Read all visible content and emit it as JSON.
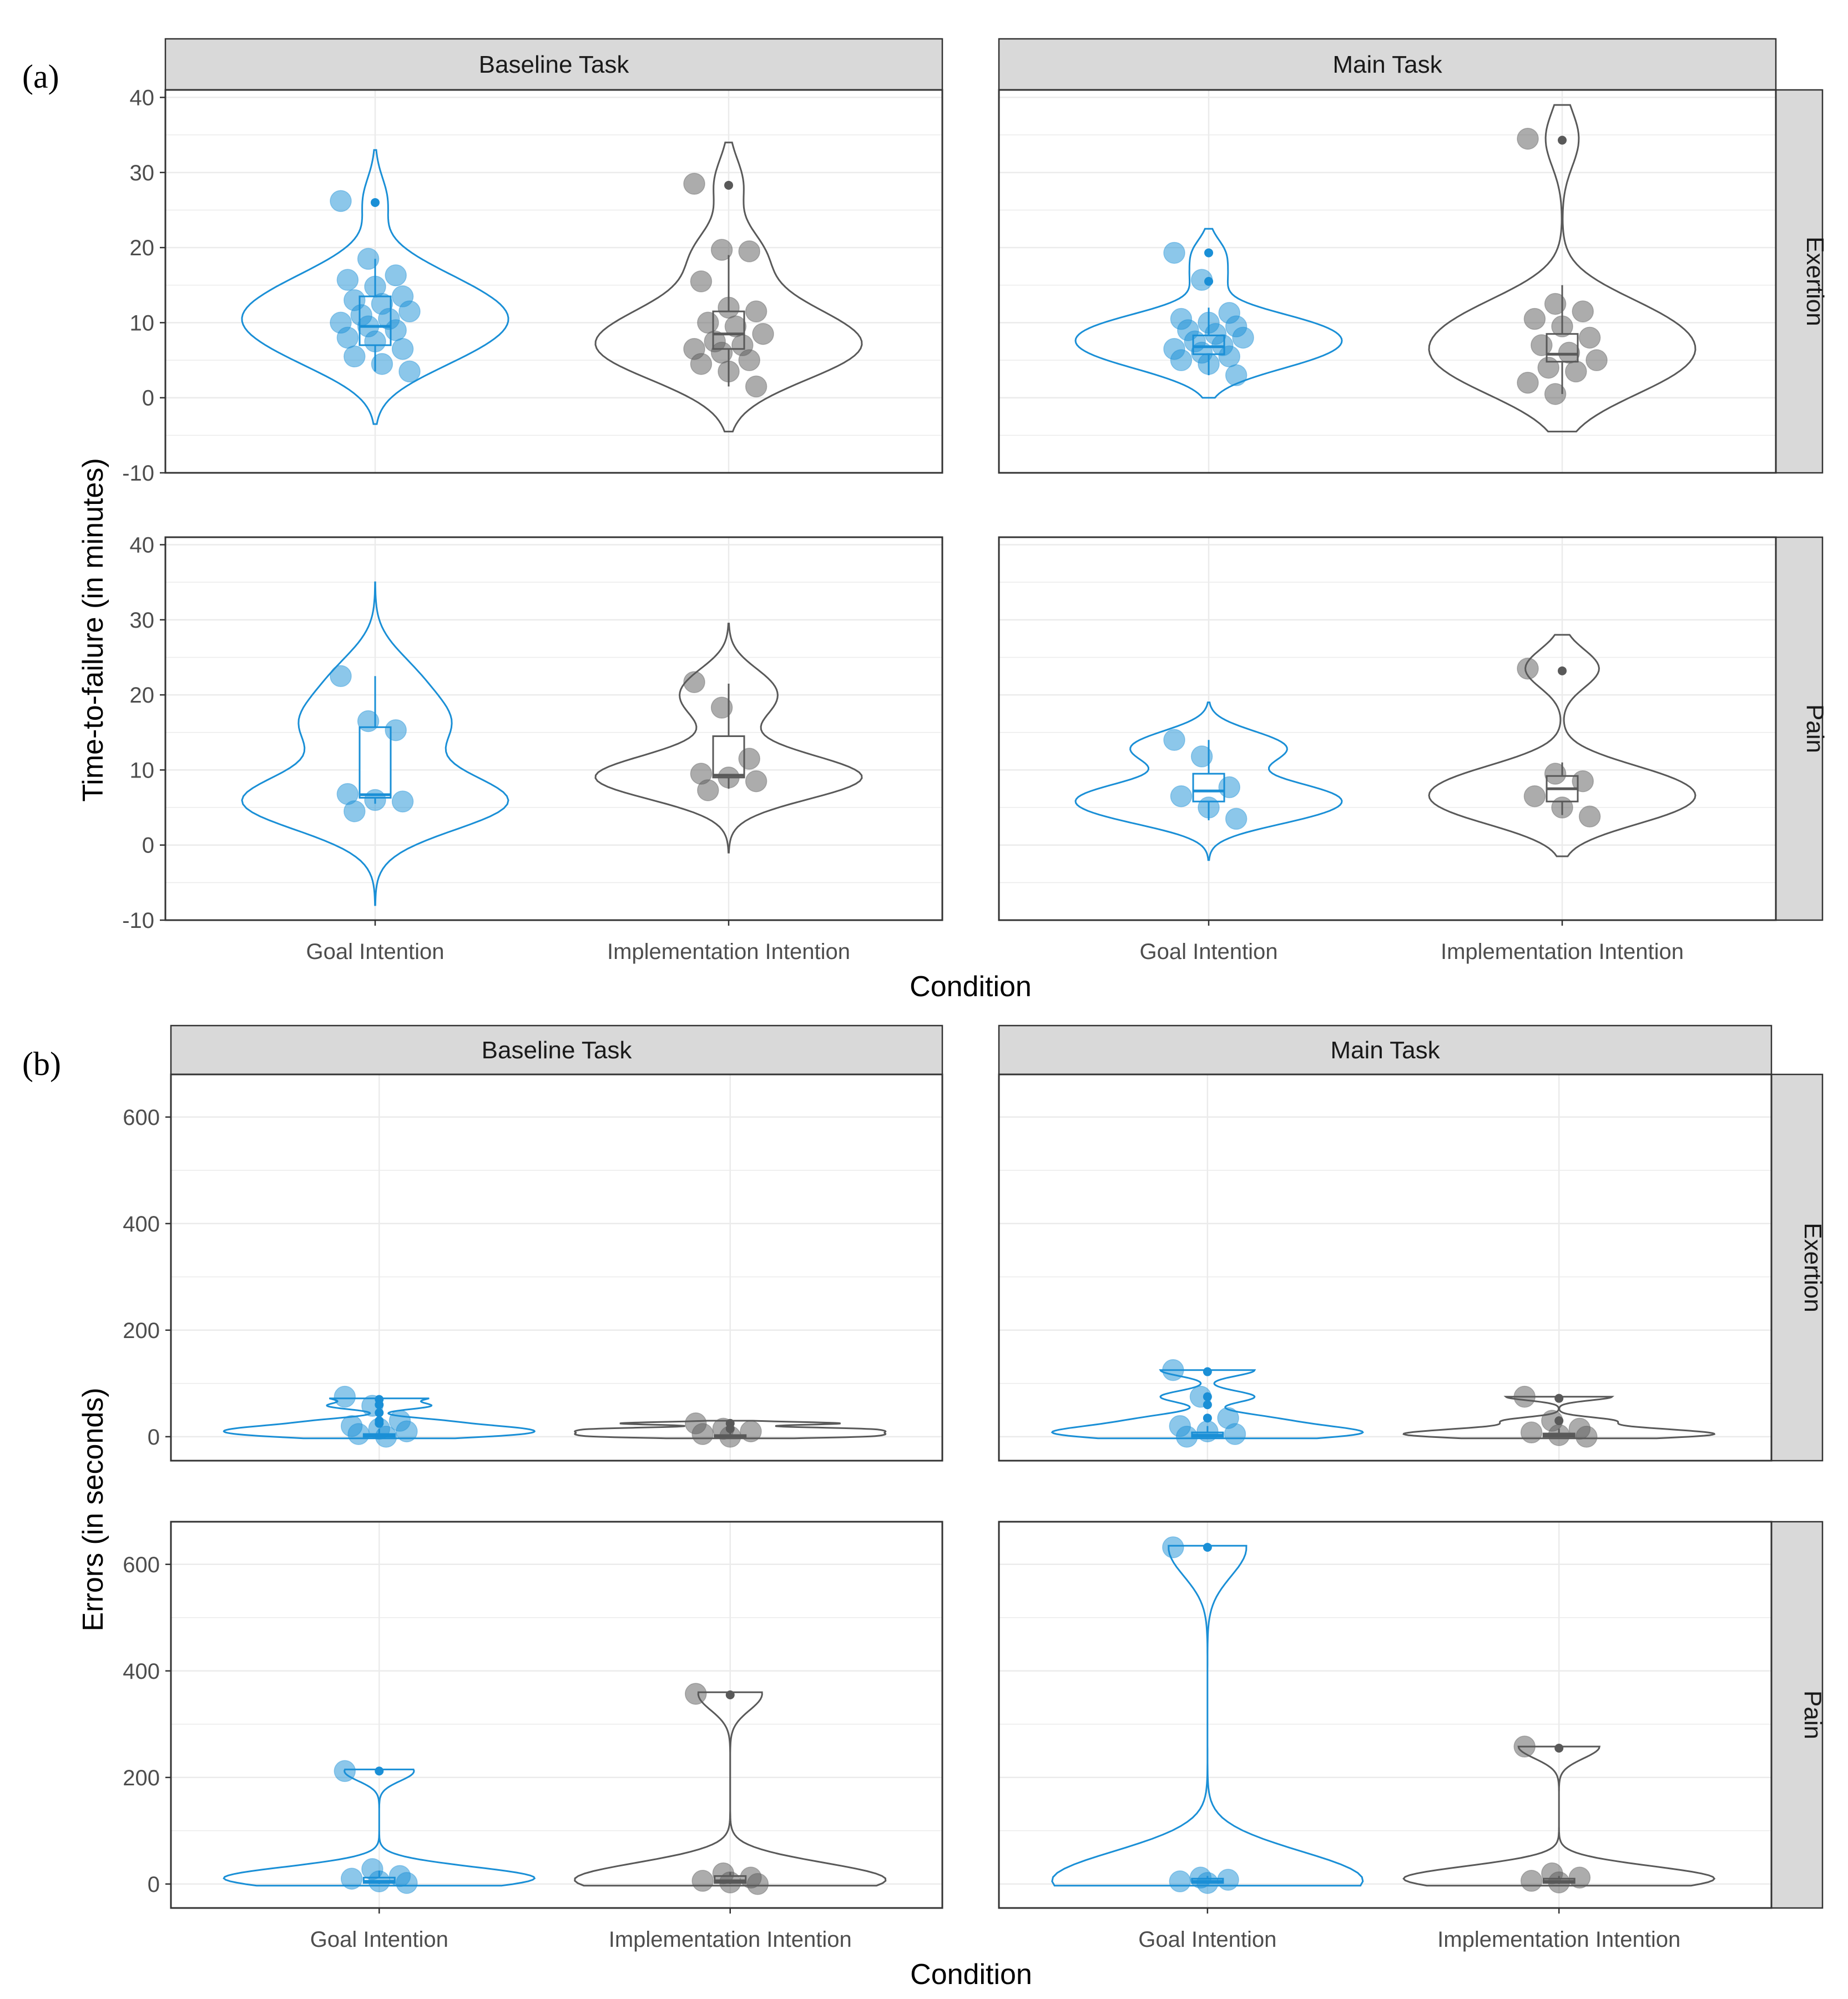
{
  "chart_data": [
    {
      "panel_label": "(a)",
      "type": "violin",
      "ylabel": "Time-to-failure (in minutes)",
      "xlabel": "Condition",
      "ylim": [
        -10,
        41
      ],
      "yticks": [
        -10,
        0,
        10,
        20,
        30,
        40
      ],
      "categories": [
        "Goal Intention",
        "Implementation Intention"
      ],
      "column_facets": [
        "Baseline Task",
        "Main Task"
      ],
      "row_facets": [
        "Exertion",
        "Pain"
      ],
      "colors": {
        "Goal Intention": "#1a8fd6",
        "Implementation Intention": "#595959"
      },
      "facets": [
        {
          "col": 0,
          "row": 0,
          "groups": [
            {
              "cat": 0,
              "box": {
                "q1": 7,
                "median": 9.5,
                "q3": 13.5,
                "whisker_low": 3.5,
                "whisker_high": 18.5
              },
              "outliers": [
                26
              ],
              "violin": {
                "min": -3.5,
                "max": 33
              },
              "points": [
                26.2,
                18.5,
                16.3,
                15.7,
                14.8,
                13.5,
                13.0,
                12.5,
                11.5,
                11.0,
                10.5,
                10.0,
                9.5,
                9.0,
                8.0,
                7.5,
                6.5,
                5.5,
                4.5,
                3.5
              ]
            },
            {
              "cat": 1,
              "box": {
                "q1": 6.5,
                "median": 8.5,
                "q3": 11.5,
                "whisker_low": 1.5,
                "whisker_high": 19
              },
              "outliers": [
                28.3
              ],
              "violin": {
                "min": -4.5,
                "max": 34
              },
              "points": [
                28.5,
                19.7,
                19.5,
                15.5,
                12,
                11.5,
                10,
                9.5,
                8.5,
                7.5,
                7,
                6.5,
                6,
                5,
                4.5,
                3.5,
                1.5
              ]
            }
          ]
        },
        {
          "col": 1,
          "row": 0,
          "groups": [
            {
              "cat": 0,
              "box": {
                "q1": 5.8,
                "median": 6.8,
                "q3": 8.3,
                "whisker_low": 3,
                "whisker_high": 12
              },
              "outliers": [
                19.3,
                15.5
              ],
              "violin": {
                "min": 0,
                "max": 22.5
              },
              "points": [
                19.3,
                15.7,
                11.3,
                10.5,
                10,
                9.5,
                9,
                8.5,
                8,
                7.5,
                7,
                6.5,
                6,
                5.5,
                5,
                4.5,
                3
              ]
            },
            {
              "cat": 1,
              "box": {
                "q1": 4.8,
                "median": 5.8,
                "q3": 8.5,
                "whisker_low": 0.5,
                "whisker_high": 15
              },
              "outliers": [
                34.3
              ],
              "violin": {
                "min": -4.5,
                "max": 39
              },
              "points": [
                34.5,
                12.5,
                11.5,
                10.5,
                9.5,
                8,
                7,
                6,
                5,
                4,
                3.5,
                2,
                0.5
              ]
            }
          ]
        },
        {
          "col": 0,
          "row": 1,
          "groups": [
            {
              "cat": 0,
              "box": {
                "q1": 6.3,
                "median": 6.7,
                "q3": 15.7,
                "whisker_low": 5.5,
                "whisker_high": 22.5
              },
              "outliers": [],
              "violin": {
                "min": -8,
                "max": 35
              },
              "points": [
                22.5,
                16.5,
                15.3,
                6.8,
                6,
                5.8,
                4.5
              ]
            },
            {
              "cat": 1,
              "box": {
                "q1": 9,
                "median": 9.3,
                "q3": 14.5,
                "whisker_low": 7.5,
                "whisker_high": 21.5
              },
              "outliers": [],
              "violin": {
                "min": -1,
                "max": 29.5
              },
              "points": [
                21.7,
                18.3,
                11.5,
                9.5,
                9,
                8.5,
                7.3
              ]
            }
          ]
        },
        {
          "col": 1,
          "row": 1,
          "groups": [
            {
              "cat": 0,
              "box": {
                "q1": 5.8,
                "median": 7.2,
                "q3": 9.5,
                "whisker_low": 3.3,
                "whisker_high": 14
              },
              "outliers": [],
              "violin": {
                "min": -2,
                "max": 19
              },
              "points": [
                14,
                11.8,
                7.7,
                6.5,
                5,
                3.5
              ]
            },
            {
              "cat": 1,
              "box": {
                "q1": 5.8,
                "median": 7.5,
                "q3": 9.2,
                "whisker_low": 4,
                "whisker_high": 11
              },
              "outliers": [
                23.2
              ],
              "violin": {
                "min": -1.5,
                "max": 28
              },
              "points": [
                23.5,
                9.5,
                8.5,
                6.5,
                5,
                3.8
              ]
            }
          ]
        }
      ]
    },
    {
      "panel_label": "(b)",
      "type": "violin",
      "ylabel": "Errors (in seconds)",
      "xlabel": "Condition",
      "ylim": [
        -45,
        680
      ],
      "yticks": [
        0,
        200,
        400,
        600
      ],
      "categories": [
        "Goal Intention",
        "Implementation Intention"
      ],
      "column_facets": [
        "Baseline Task",
        "Main Task"
      ],
      "row_facets": [
        "Exertion",
        "Pain"
      ],
      "colors": {
        "Goal Intention": "#1a8fd6",
        "Implementation Intention": "#595959"
      },
      "facets": [
        {
          "col": 0,
          "row": 0,
          "groups": [
            {
              "cat": 0,
              "box": {
                "q1": 0,
                "median": 2,
                "q3": 5,
                "whisker_low": 0,
                "whisker_high": 15
              },
              "outliers": [
                70,
                60,
                45,
                30,
                25
              ],
              "violin": {
                "min": -3,
                "max": 72
              },
              "points": [
                75,
                58,
                30,
                20,
                15,
                10,
                5,
                0
              ]
            },
            {
              "cat": 1,
              "box": {
                "q1": 0,
                "median": 1,
                "q3": 3,
                "whisker_low": 0,
                "whisker_high": 8
              },
              "outliers": [
                25,
                15
              ],
              "violin": {
                "min": -3,
                "max": 30
              },
              "points": [
                25,
                15,
                10,
                5,
                0
              ]
            }
          ]
        },
        {
          "col": 1,
          "row": 0,
          "groups": [
            {
              "cat": 0,
              "box": {
                "q1": 0,
                "median": 3,
                "q3": 8,
                "whisker_low": 0,
                "whisker_high": 20
              },
              "outliers": [
                122,
                75,
                60,
                35
              ],
              "violin": {
                "min": -3,
                "max": 125
              },
              "points": [
                125,
                75,
                35,
                20,
                10,
                5,
                0
              ]
            },
            {
              "cat": 1,
              "box": {
                "q1": 0,
                "median": 2,
                "q3": 6,
                "whisker_low": 0,
                "whisker_high": 15
              },
              "outliers": [
                72,
                30
              ],
              "violin": {
                "min": -3,
                "max": 75
              },
              "points": [
                75,
                30,
                15,
                8,
                3,
                0
              ]
            }
          ]
        },
        {
          "col": 0,
          "row": 1,
          "groups": [
            {
              "cat": 0,
              "box": {
                "q1": 2,
                "median": 5,
                "q3": 12,
                "whisker_low": 0,
                "whisker_high": 25
              },
              "outliers": [
                212
              ],
              "violin": {
                "min": -3,
                "max": 215
              },
              "points": [
                212,
                28,
                15,
                10,
                5,
                2
              ]
            },
            {
              "cat": 1,
              "box": {
                "q1": 2,
                "median": 6,
                "q3": 15,
                "whisker_low": 0,
                "whisker_high": 22
              },
              "outliers": [
                355
              ],
              "violin": {
                "min": -3,
                "max": 360
              },
              "points": [
                357,
                20,
                12,
                6,
                3,
                0
              ]
            }
          ]
        },
        {
          "col": 1,
          "row": 1,
          "groups": [
            {
              "cat": 0,
              "box": {
                "q1": 2,
                "median": 5,
                "q3": 10,
                "whisker_low": 0,
                "whisker_high": 15
              },
              "outliers": [
                632
              ],
              "violin": {
                "min": -3,
                "max": 635
              },
              "points": [
                632,
                12,
                8,
                5,
                2
              ]
            },
            {
              "cat": 1,
              "box": {
                "q1": 2,
                "median": 5,
                "q3": 10,
                "whisker_low": 0,
                "whisker_high": 15
              },
              "outliers": [
                255
              ],
              "violin": {
                "min": -3,
                "max": 258
              },
              "points": [
                258,
                20,
                12,
                6,
                3
              ]
            }
          ]
        }
      ]
    }
  ]
}
